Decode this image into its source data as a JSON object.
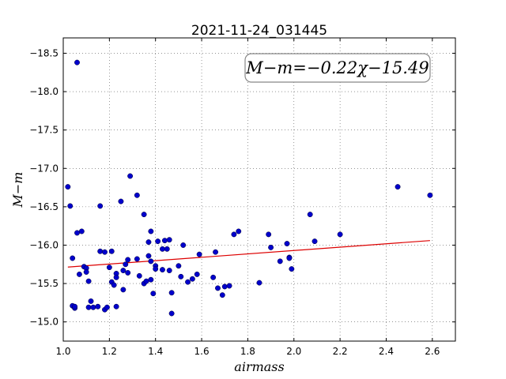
{
  "chart_data": {
    "type": "scatter",
    "title": "2021-11-24_031445",
    "xlabel": "airmass",
    "ylabel": "M−m",
    "xlim": [
      1.0,
      2.7
    ],
    "ylim": [
      -18.7,
      -14.75
    ],
    "y_inverted": true,
    "grid": true,
    "xticks": [
      "1.0",
      "1.2",
      "1.4",
      "1.6",
      "1.8",
      "2.0",
      "2.2",
      "2.4",
      "2.6"
    ],
    "yticks": [
      "−15.0",
      "−15.5",
      "−16.0",
      "−16.5",
      "−17.0",
      "−17.5",
      "−18.0",
      "−18.5"
    ],
    "annotation": "M−m=−0.22χ−15.49",
    "point_color": "#0000cc",
    "line_color": "#dd0000",
    "fit": {
      "slope": -0.22,
      "intercept": -15.49,
      "x_range": [
        1.02,
        2.59
      ]
    },
    "points": [
      [
        1.02,
        -16.76
      ],
      [
        1.03,
        -16.51
      ],
      [
        1.04,
        -15.83
      ],
      [
        1.04,
        -15.21
      ],
      [
        1.05,
        -15.18
      ],
      [
        1.05,
        -15.2
      ],
      [
        1.06,
        -18.38
      ],
      [
        1.06,
        -16.16
      ],
      [
        1.07,
        -15.62
      ],
      [
        1.08,
        -16.18
      ],
      [
        1.09,
        -15.72
      ],
      [
        1.1,
        -15.7
      ],
      [
        1.1,
        -15.65
      ],
      [
        1.11,
        -15.19
      ],
      [
        1.11,
        -15.53
      ],
      [
        1.12,
        -15.27
      ],
      [
        1.13,
        -15.19
      ],
      [
        1.15,
        -15.2
      ],
      [
        1.16,
        -16.51
      ],
      [
        1.16,
        -15.92
      ],
      [
        1.18,
        -15.91
      ],
      [
        1.18,
        -15.16
      ],
      [
        1.19,
        -15.19
      ],
      [
        1.2,
        -15.71
      ],
      [
        1.21,
        -15.92
      ],
      [
        1.21,
        -15.52
      ],
      [
        1.22,
        -15.48
      ],
      [
        1.23,
        -15.63
      ],
      [
        1.23,
        -15.58
      ],
      [
        1.23,
        -15.2
      ],
      [
        1.25,
        -16.57
      ],
      [
        1.26,
        -15.42
      ],
      [
        1.26,
        -15.67
      ],
      [
        1.27,
        -15.75
      ],
      [
        1.28,
        -15.81
      ],
      [
        1.28,
        -15.64
      ],
      [
        1.29,
        -16.9
      ],
      [
        1.32,
        -16.65
      ],
      [
        1.32,
        -15.82
      ],
      [
        1.33,
        -15.6
      ],
      [
        1.35,
        -16.4
      ],
      [
        1.35,
        -15.5
      ],
      [
        1.36,
        -15.53
      ],
      [
        1.37,
        -16.04
      ],
      [
        1.37,
        -15.86
      ],
      [
        1.38,
        -16.18
      ],
      [
        1.38,
        -15.79
      ],
      [
        1.38,
        -15.55
      ],
      [
        1.39,
        -15.37
      ],
      [
        1.4,
        -15.73
      ],
      [
        1.4,
        -15.69
      ],
      [
        1.41,
        -16.05
      ],
      [
        1.43,
        -15.68
      ],
      [
        1.43,
        -15.95
      ],
      [
        1.44,
        -16.06
      ],
      [
        1.45,
        -15.95
      ],
      [
        1.46,
        -16.07
      ],
      [
        1.46,
        -15.67
      ],
      [
        1.47,
        -15.38
      ],
      [
        1.47,
        -15.11
      ],
      [
        1.5,
        -15.73
      ],
      [
        1.51,
        -15.59
      ],
      [
        1.52,
        -16.0
      ],
      [
        1.54,
        -15.52
      ],
      [
        1.56,
        -15.56
      ],
      [
        1.58,
        -15.62
      ],
      [
        1.59,
        -15.88
      ],
      [
        1.65,
        -15.58
      ],
      [
        1.66,
        -15.91
      ],
      [
        1.67,
        -15.44
      ],
      [
        1.69,
        -15.35
      ],
      [
        1.7,
        -15.46
      ],
      [
        1.72,
        -15.47
      ],
      [
        1.74,
        -16.14
      ],
      [
        1.76,
        -16.18
      ],
      [
        1.85,
        -15.51
      ],
      [
        1.89,
        -16.14
      ],
      [
        1.9,
        -15.97
      ],
      [
        1.94,
        -15.79
      ],
      [
        1.97,
        -16.02
      ],
      [
        1.98,
        -15.84
      ],
      [
        1.98,
        -15.83
      ],
      [
        1.99,
        -15.69
      ],
      [
        2.07,
        -16.4
      ],
      [
        2.09,
        -16.05
      ],
      [
        2.2,
        -16.14
      ],
      [
        2.45,
        -16.76
      ],
      [
        2.59,
        -16.65
      ]
    ]
  }
}
